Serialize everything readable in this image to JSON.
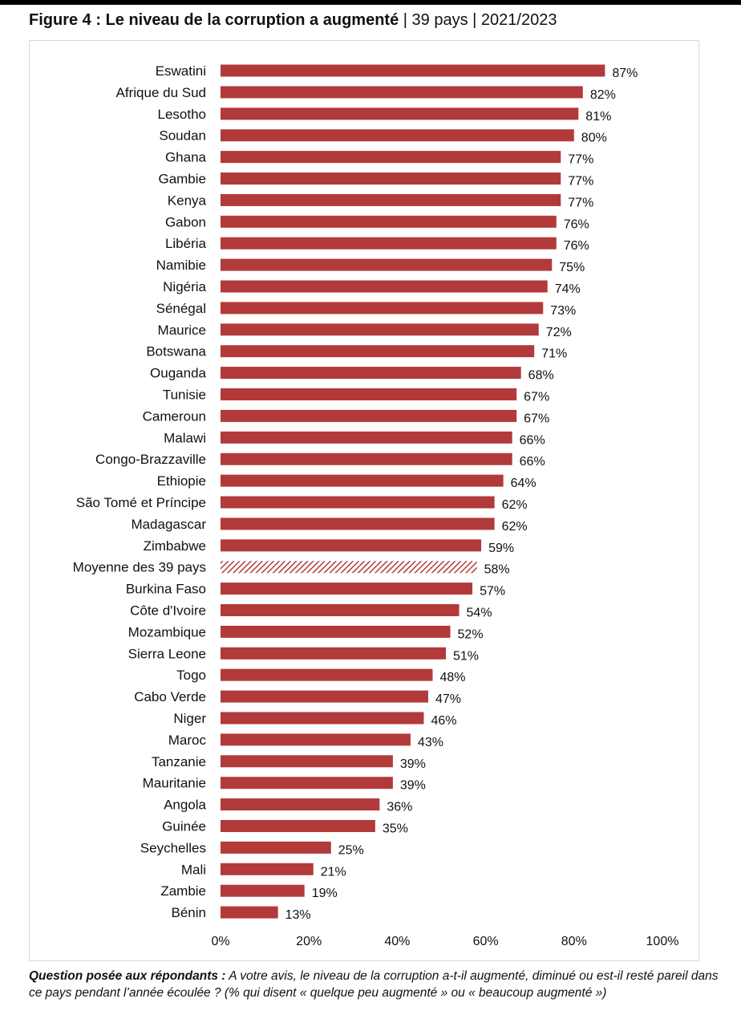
{
  "header": {
    "figure_title": "Figure 4 : Le niveau de la corruption a augmenté",
    "sep1": "|",
    "countries_count": "39 pays",
    "sep2": "|",
    "period": "2021/2023"
  },
  "footer": {
    "question_label": "Question posée aux répondants :",
    "question_text": "A votre avis, le niveau de la corruption a-t-il augmenté, diminué ou est-il resté pareil dans ce pays pendant l’année écoulée ? (% qui disent « quelque peu augmenté » ou « beaucoup augmenté »)"
  },
  "colors": {
    "bar": "#B23A3A",
    "label_text": "#111111"
  },
  "chart_data": {
    "type": "bar",
    "orientation": "horizontal",
    "title": "Figure 4 : Le niveau de la corruption a augmenté",
    "xlabel": "",
    "ylabel": "",
    "xlim": [
      0,
      100
    ],
    "x_ticks": [
      "0%",
      "20%",
      "40%",
      "60%",
      "80%",
      "100%"
    ],
    "x_tick_values": [
      0,
      20,
      40,
      60,
      80,
      100
    ],
    "grid": false,
    "legend": "none",
    "highlight_category": "Moyenne des 39 pays",
    "highlight_style": "hatched",
    "categories": [
      "Eswatini",
      "Afrique du Sud",
      "Lesotho",
      "Soudan",
      "Ghana",
      "Gambie",
      "Kenya",
      "Gabon",
      "Libéria",
      "Namibie",
      "Nigéria",
      "Sénégal",
      "Maurice",
      "Botswana",
      "Ouganda",
      "Tunisie",
      "Cameroun",
      "Malawi",
      "Congo-Brazzaville",
      "Ethiopie",
      "São Tomé et Príncipe",
      "Madagascar",
      "Zimbabwe",
      "Moyenne des 39 pays",
      "Burkina Faso",
      "Côte d'Ivoire",
      "Mozambique",
      "Sierra Leone",
      "Togo",
      "Cabo Verde",
      "Niger",
      "Maroc",
      "Tanzanie",
      "Mauritanie",
      "Angola",
      "Guinée",
      "Seychelles",
      "Mali",
      "Zambie",
      "Bénin"
    ],
    "values": [
      87,
      82,
      81,
      80,
      77,
      77,
      77,
      76,
      76,
      75,
      74,
      73,
      72,
      71,
      68,
      67,
      67,
      66,
      66,
      64,
      62,
      62,
      59,
      58,
      57,
      54,
      52,
      51,
      48,
      47,
      46,
      43,
      39,
      39,
      36,
      35,
      25,
      21,
      19,
      13
    ],
    "value_labels": [
      "87%",
      "82%",
      "81%",
      "80%",
      "77%",
      "77%",
      "77%",
      "76%",
      "76%",
      "75%",
      "74%",
      "73%",
      "72%",
      "71%",
      "68%",
      "67%",
      "67%",
      "66%",
      "66%",
      "64%",
      "62%",
      "62%",
      "59%",
      "58%",
      "57%",
      "54%",
      "52%",
      "51%",
      "48%",
      "47%",
      "46%",
      "43%",
      "39%",
      "39%",
      "36%",
      "35%",
      "25%",
      "21%",
      "19%",
      "13%"
    ]
  }
}
